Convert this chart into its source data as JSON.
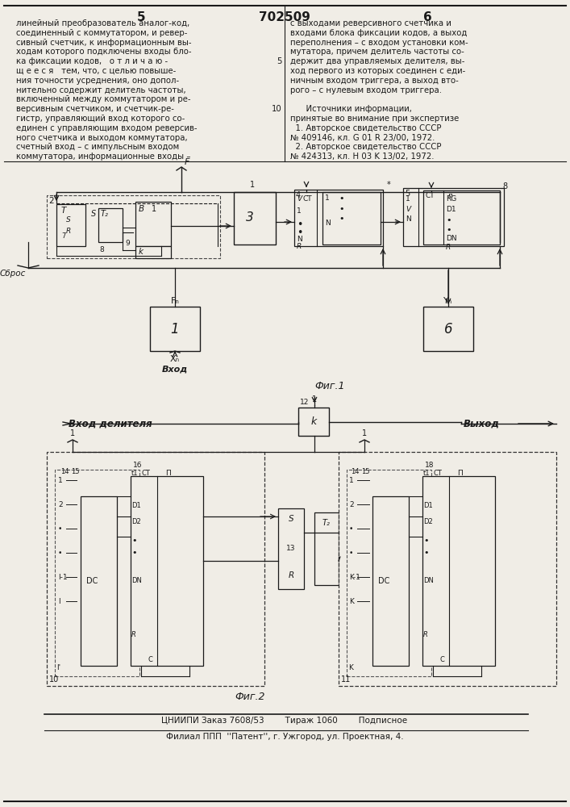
{
  "patent_number": "702509",
  "page_left": "5",
  "page_right": "6",
  "bg_color": "#f0ede6",
  "text_color": "#1a1a1a",
  "line_color": "#1a1a1a"
}
